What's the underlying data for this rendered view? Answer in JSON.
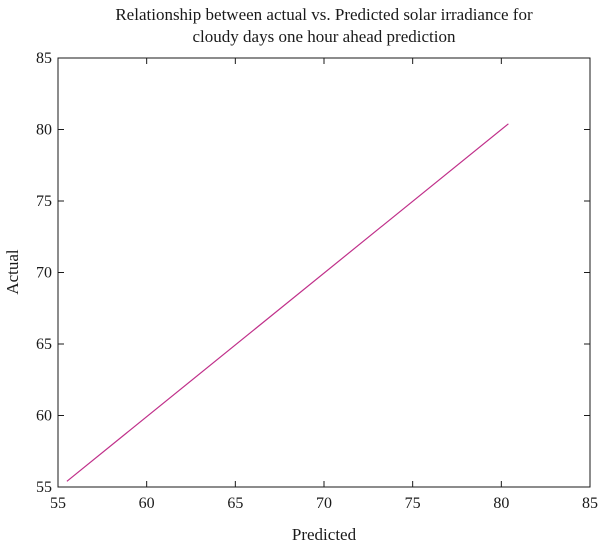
{
  "chart_data": {
    "type": "line",
    "title": [
      "Relationship between actual vs. Predicted solar irradiance for",
      "cloudy days one hour ahead prediction"
    ],
    "xlabel": "Predicted",
    "ylabel": "Actual",
    "xlim": [
      55,
      85
    ],
    "ylim": [
      55,
      85
    ],
    "xticks": [
      "55",
      "60",
      "65",
      "70",
      "75",
      "80",
      "85"
    ],
    "yticks": [
      "55",
      "60",
      "65",
      "70",
      "75",
      "80",
      "85"
    ],
    "grid": false,
    "series": [
      {
        "color": "#c0308a",
        "x": [
          55.5,
          80.4
        ],
        "y": [
          55.4,
          80.4
        ]
      }
    ]
  }
}
